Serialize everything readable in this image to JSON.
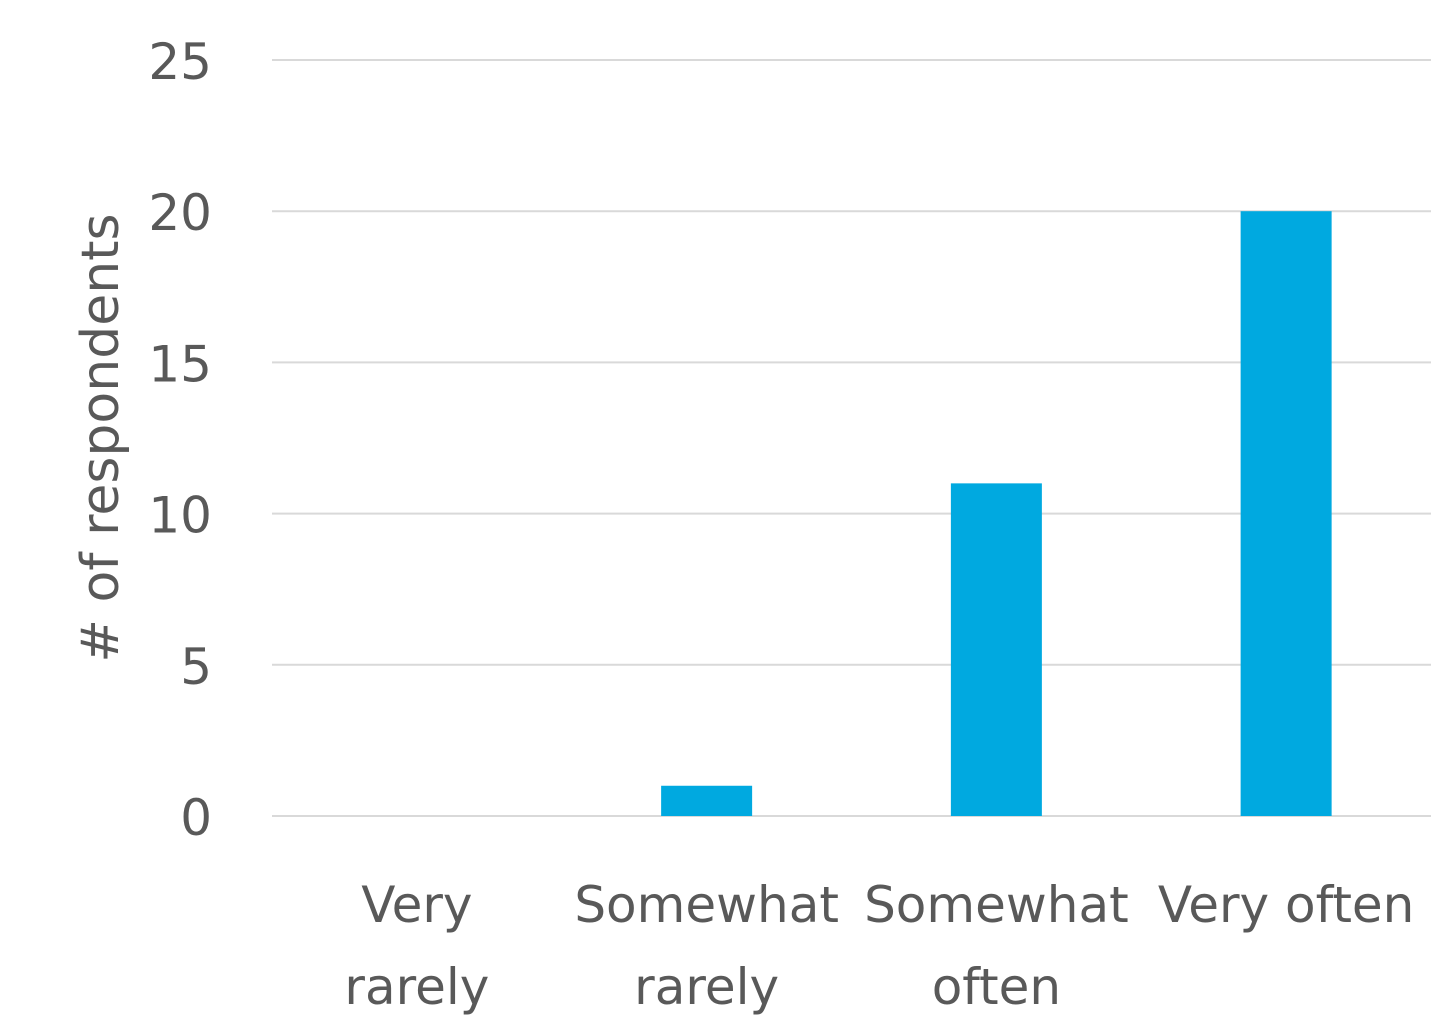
{
  "chart_data": {
    "type": "bar",
    "title": "",
    "xlabel": "",
    "ylabel": "# of respondents",
    "categories": [
      [
        "Very",
        "rarely"
      ],
      [
        "Somewhat",
        "rarely"
      ],
      [
        "Somewhat",
        "often"
      ],
      [
        "Very often"
      ]
    ],
    "values": [
      0,
      1,
      11,
      20
    ],
    "ylim": [
      0,
      25
    ],
    "yticks": [
      0,
      5,
      10,
      15,
      20,
      25
    ],
    "grid": true,
    "legend": "none",
    "bar_color": "#00A9E0",
    "grid_color": "#D9D9D9",
    "text_color": "#595959"
  }
}
